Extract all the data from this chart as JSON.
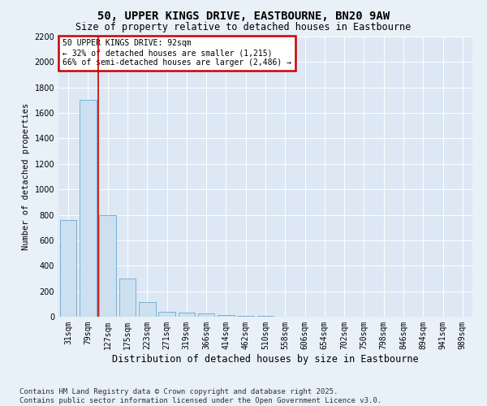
{
  "title": "50, UPPER KINGS DRIVE, EASTBOURNE, BN20 9AW",
  "subtitle": "Size of property relative to detached houses in Eastbourne",
  "xlabel": "Distribution of detached houses by size in Eastbourne",
  "ylabel": "Number of detached properties",
  "categories": [
    "31sqm",
    "79sqm",
    "127sqm",
    "175sqm",
    "223sqm",
    "271sqm",
    "319sqm",
    "366sqm",
    "414sqm",
    "462sqm",
    "510sqm",
    "558sqm",
    "606sqm",
    "654sqm",
    "702sqm",
    "750sqm",
    "798sqm",
    "846sqm",
    "894sqm",
    "941sqm",
    "989sqm"
  ],
  "values": [
    760,
    1700,
    800,
    300,
    115,
    40,
    35,
    25,
    15,
    5,
    5,
    0,
    0,
    0,
    0,
    0,
    0,
    0,
    0,
    0,
    0
  ],
  "bar_color": "#cce0f0",
  "bar_edge_color": "#7ab0d4",
  "vline_x": 1.5,
  "vline_color": "#cc0000",
  "annotation_text": "50 UPPER KINGS DRIVE: 92sqm\n← 32% of detached houses are smaller (1,215)\n66% of semi-detached houses are larger (2,486) →",
  "annotation_box_color": "#cc0000",
  "ylim": [
    0,
    2200
  ],
  "yticks": [
    0,
    200,
    400,
    600,
    800,
    1000,
    1200,
    1400,
    1600,
    1800,
    2000,
    2200
  ],
  "bg_color": "#e8f0f8",
  "plot_bg_color": "#dde8f4",
  "footer": "Contains HM Land Registry data © Crown copyright and database right 2025.\nContains public sector information licensed under the Open Government Licence v3.0.",
  "title_fontsize": 10,
  "subtitle_fontsize": 8.5,
  "xlabel_fontsize": 8.5,
  "ylabel_fontsize": 7.5,
  "footer_fontsize": 6.5,
  "tick_fontsize": 7
}
